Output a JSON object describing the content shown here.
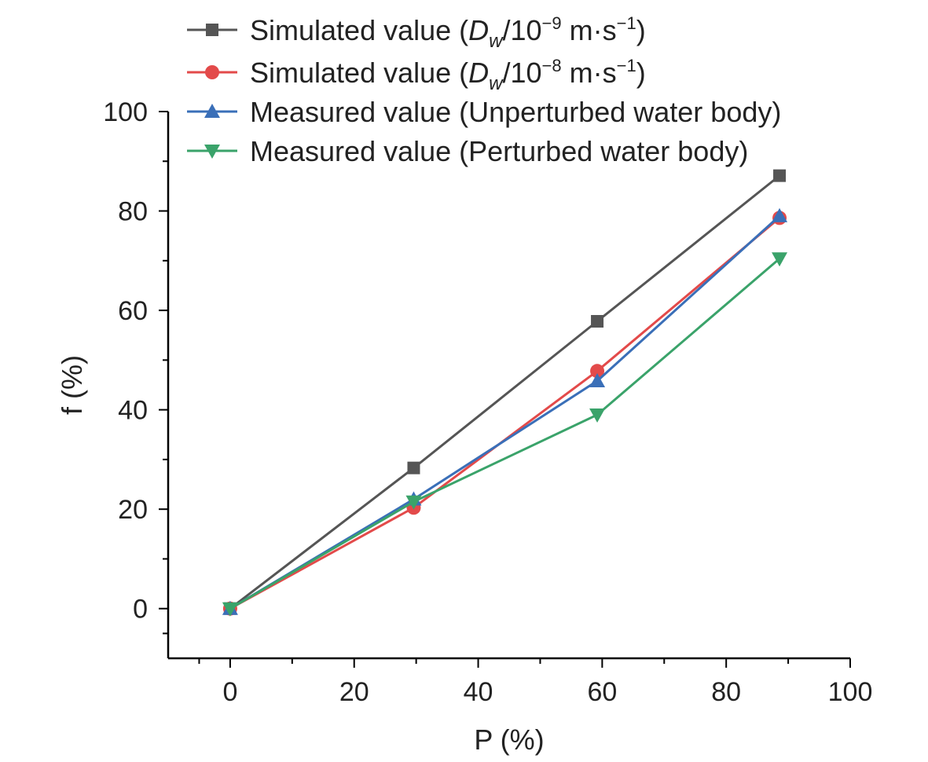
{
  "chart_data": {
    "type": "line",
    "xlabel": "P (%)",
    "ylabel": "f (%)",
    "xlim": [
      -10,
      100
    ],
    "ylim": [
      -10,
      100
    ],
    "x_ticks": [
      0,
      20,
      40,
      60,
      80,
      100
    ],
    "y_ticks": [
      0,
      20,
      40,
      60,
      80,
      100
    ],
    "x_tick_labels": [
      "0",
      "20",
      "40",
      "60",
      "80",
      "100"
    ],
    "y_tick_labels": [
      "0",
      "20",
      "40",
      "60",
      "80",
      "100"
    ],
    "grid": false,
    "legend_position": "top",
    "x": [
      0,
      29.6,
      59.2,
      88.6
    ],
    "series": [
      {
        "name": "Simulated value (D_w/10^-9 m·s^-1)",
        "legend_parts": {
          "prefix": "Simulated value (",
          "symbol": "D",
          "subscript": "w",
          "mid": "/10",
          "exponent": "−9",
          "unit": " m·s",
          "unit_exponent": "−1",
          "suffix": ")"
        },
        "marker": "square",
        "color": "#555555",
        "values": [
          0,
          28.3,
          57.8,
          87.1
        ]
      },
      {
        "name": "Simulated value (D_w/10^-8 m·s^-1)",
        "legend_parts": {
          "prefix": "Simulated value (",
          "symbol": "D",
          "subscript": "w",
          "mid": "/10",
          "exponent": "−8",
          "unit": " m·s",
          "unit_exponent": "−1",
          "suffix": ")"
        },
        "marker": "circle",
        "color": "#e34a4a",
        "values": [
          0,
          20.3,
          47.8,
          78.6
        ]
      },
      {
        "name": "Measured value (Unperturbed water body)",
        "marker": "triangle-up",
        "color": "#3a6fb8",
        "values": [
          0,
          22.0,
          45.8,
          79.0
        ]
      },
      {
        "name": "Measured value (Perturbed water body)",
        "marker": "triangle-down",
        "color": "#3aa36a",
        "values": [
          0,
          21.5,
          39.0,
          70.4
        ]
      }
    ]
  }
}
